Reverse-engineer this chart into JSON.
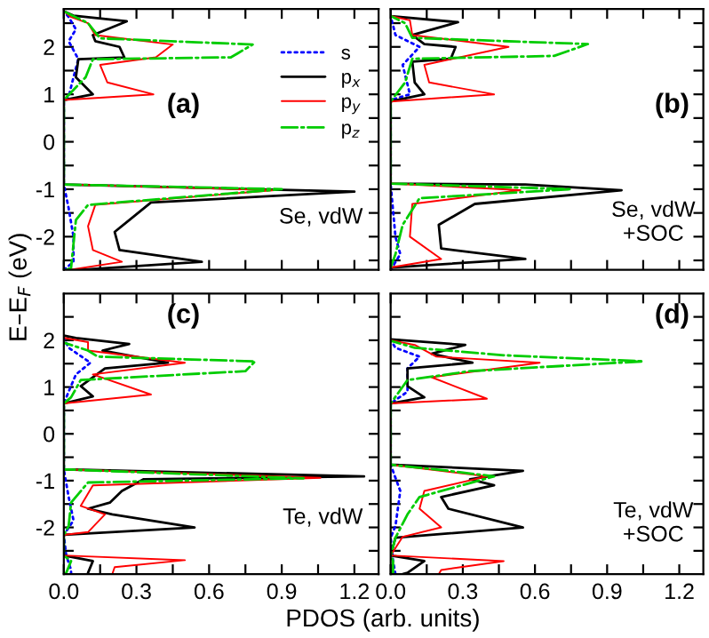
{
  "chart_data": [
    {
      "type": "line",
      "orientation": "horizontal",
      "ylabel": "E–E$_{F}$ (eV)",
      "annotations": [
        "(a)",
        "Se, vdW"
      ],
      "legend": "top right",
      "tick_labels": "y",
      "xlim": [
        0,
        1.3
      ],
      "xticks": [
        {
          "value": 0,
          "label": null
        },
        {
          "value": 0.15,
          "label": null
        },
        {
          "value": 0.3,
          "label": null
        },
        {
          "value": 0.45,
          "label": null
        },
        {
          "value": 0.6,
          "label": null
        },
        {
          "value": 0.75,
          "label": null
        },
        {
          "value": 0.9,
          "label": null
        },
        {
          "value": 1.05,
          "label": null
        },
        {
          "value": 1.2,
          "label": null
        }
      ],
      "ylim": [
        -2.7,
        2.8
      ],
      "yticks": [
        {
          "value": -2.5,
          "label": null
        },
        -2,
        {
          "value": -1.5,
          "label": null
        },
        -1,
        {
          "value": -0.5,
          "label": null
        },
        0,
        {
          "value": 0.5,
          "label": null
        },
        1,
        {
          "value": 1.5,
          "label": null
        },
        2,
        {
          "value": 2.5,
          "label": null
        }
      ],
      "series": [
        {
          "name": "s",
          "color": "#0000ff",
          "line_style": "dotted",
          "x": [
            -2.7,
            -2.53,
            -2.0,
            -1.4,
            -0.9,
            0.85,
            0.95,
            1.36,
            1.74,
            2.12,
            2.37,
            2.63,
            2.75
          ],
          "values": [
            0,
            0.04,
            0.04,
            0.02,
            0,
            0,
            0.02,
            0.04,
            0.06,
            0.02,
            0.05,
            0.02,
            0
          ]
        },
        {
          "name": "p$_{x}$",
          "color": "#000000",
          "line_style": "solid",
          "x": [
            -2.72,
            -2.53,
            -2.28,
            -1.9,
            -1.28,
            -1.05,
            -0.9,
            0.88,
            1.0,
            1.36,
            1.74,
            1.78,
            2.0,
            2.12,
            2.25,
            2.54,
            2.66,
            2.75
          ],
          "values": [
            0,
            0.57,
            0.23,
            0.21,
            0.36,
            1.2,
            0,
            0,
            0.12,
            0.05,
            0.06,
            0.25,
            0.23,
            0.13,
            0.12,
            0.26,
            0.04,
            0
          ]
        },
        {
          "name": "p$_{y}$",
          "color": "#ff0000",
          "line_style": "solid",
          "x": [
            -2.72,
            -2.53,
            -2.28,
            -1.78,
            -1.33,
            -1.02,
            -0.9,
            0.88,
            1.0,
            1.25,
            1.62,
            1.78,
            2.05,
            2.25,
            2.5,
            2.63,
            2.75
          ],
          "values": [
            0,
            0.24,
            0.12,
            0.1,
            0.13,
            0.87,
            0,
            0,
            0.37,
            0.18,
            0.15,
            0.38,
            0.45,
            0.13,
            0.1,
            0.03,
            0
          ]
        },
        {
          "name": "p$_{z}$",
          "color": "#00cc00",
          "line_style": "dashdot",
          "x": [
            -2.72,
            -2.66,
            -2.15,
            -1.65,
            -1.33,
            -1.0,
            -0.9,
            0.88,
            1.36,
            1.74,
            1.78,
            1.87,
            2.05,
            2.18,
            2.5,
            2.7,
            2.75
          ],
          "values": [
            0,
            0.03,
            0.04,
            0.05,
            0.1,
            0.9,
            0,
            0,
            0.09,
            0.12,
            0.69,
            0.72,
            0.78,
            0.15,
            0.1,
            0.02,
            0
          ]
        }
      ]
    },
    {
      "type": "line",
      "orientation": "horizontal",
      "annotations": [
        "(b)",
        "Se, vdW\n+SOC"
      ],
      "tick_labels": false,
      "xlim": [
        0,
        1.3
      ],
      "xticks": [
        {
          "value": 0,
          "label": null
        },
        {
          "value": 0.15,
          "label": null
        },
        {
          "value": 0.3,
          "label": null
        },
        {
          "value": 0.45,
          "label": null
        },
        {
          "value": 0.6,
          "label": null
        },
        {
          "value": 0.75,
          "label": null
        },
        {
          "value": 0.9,
          "label": null
        },
        {
          "value": 1.05,
          "label": null
        },
        {
          "value": 1.2,
          "label": null
        }
      ],
      "ylim": [
        -2.7,
        2.8
      ],
      "yticks": [
        {
          "value": -2.5,
          "label": null
        },
        {
          "value": -2,
          "label": null
        },
        {
          "value": -1.5,
          "label": null
        },
        {
          "value": -1,
          "label": null
        },
        {
          "value": -0.5,
          "label": null
        },
        {
          "value": 0,
          "label": null
        },
        {
          "value": 0.5,
          "label": null
        },
        {
          "value": 1,
          "label": null
        },
        {
          "value": 1.5,
          "label": null
        },
        {
          "value": 2,
          "label": null
        },
        {
          "value": 2.5,
          "label": null
        }
      ],
      "series": [
        {
          "color": "#0000ff",
          "line_style": "dotted",
          "x": [
            -2.7,
            -2.37,
            -2.0,
            -0.9,
            0.88,
            1.0,
            1.62,
            2.0,
            2.25,
            2.65
          ],
          "values": [
            0,
            0.04,
            0.02,
            0,
            0,
            0.08,
            0.05,
            0.12,
            0.02,
            0
          ]
        },
        {
          "color": "#000000",
          "line_style": "solid",
          "x": [
            -2.65,
            -2.47,
            -2.25,
            -1.75,
            -1.31,
            -1.02,
            -0.9,
            -0.88,
            0.85,
            1.0,
            1.25,
            1.69,
            1.75,
            2.0,
            2.06,
            2.25,
            2.52,
            2.65
          ],
          "values": [
            0,
            0.56,
            0.21,
            0.2,
            0.35,
            0.96,
            0.56,
            0,
            0,
            0.14,
            0.1,
            0.09,
            0.25,
            0.27,
            0.14,
            0.09,
            0.28,
            0
          ]
        },
        {
          "color": "#ff0000",
          "line_style": "solid",
          "x": [
            -2.65,
            -2.47,
            -2.0,
            -1.31,
            -1.02,
            -0.88,
            0.85,
            1.0,
            1.25,
            1.62,
            2.0,
            2.25,
            2.56,
            2.65
          ],
          "values": [
            0,
            0.21,
            0.08,
            0.09,
            0.54,
            0,
            0,
            0.43,
            0.16,
            0.14,
            0.49,
            0.09,
            0.08,
            0
          ]
        },
        {
          "color": "#00cc00",
          "line_style": "dashdot",
          "x": [
            -2.65,
            -2.37,
            -1.75,
            -1.19,
            -1.0,
            -0.88,
            0.85,
            1.25,
            1.75,
            1.81,
            2.06,
            2.19,
            2.5,
            2.65
          ],
          "values": [
            0,
            0.02,
            0.05,
            0.12,
            0.75,
            0,
            0,
            0.06,
            0.09,
            0.68,
            0.82,
            0.09,
            0.06,
            0
          ]
        }
      ]
    },
    {
      "type": "line",
      "orientation": "horizontal",
      "xlabel": "PDOS (arb. units)",
      "annotations": [
        "(c)",
        "Te, vdW"
      ],
      "xlim": [
        0,
        1.3
      ],
      "xticks": [
        {
          "value": 0,
          "label": "0.0"
        },
        {
          "value": 0.15,
          "label": null
        },
        {
          "value": 0.3,
          "label": "0.3"
        },
        {
          "value": 0.45,
          "label": null
        },
        {
          "value": 0.6,
          "label": "0.6"
        },
        {
          "value": 0.75,
          "label": null
        },
        {
          "value": 0.9,
          "label": "0.9"
        },
        {
          "value": 1.05,
          "label": null
        },
        {
          "value": 1.2,
          "label": "1.2"
        }
      ],
      "ylim": [
        -3,
        3
      ],
      "yticks": [
        {
          "value": -2.5,
          "label": null
        },
        -2,
        {
          "value": -1.5,
          "label": null
        },
        -1,
        {
          "value": -0.5,
          "label": null
        },
        0,
        {
          "value": 0.5,
          "label": null
        },
        1,
        {
          "value": 1.5,
          "label": null
        },
        2,
        {
          "value": 2.5,
          "label": null
        }
      ],
      "series": [
        {
          "color": "#0000ff",
          "line_style": "dotted",
          "x": [
            -3.0,
            -2.91,
            -2.6,
            -2.16,
            -1.85,
            -1.35,
            -0.76,
            0.65,
            0.9,
            1.27,
            1.52,
            1.84,
            2.05
          ],
          "values": [
            0.03,
            0.03,
            0.01,
            0,
            0.04,
            0.02,
            0,
            0,
            0.02,
            0.05,
            0.11,
            0.02,
            0
          ]
        },
        {
          "color": "#000000",
          "line_style": "solid",
          "x": [
            -3.0,
            -2.97,
            -2.72,
            -2.6,
            -2.16,
            -2.0,
            -1.72,
            -1.6,
            -1.47,
            -1.22,
            -0.97,
            -0.91,
            -0.76,
            0.65,
            0.8,
            1.02,
            1.4,
            1.52,
            1.78,
            1.92,
            2.05,
            2.1
          ],
          "values": [
            0.1,
            0.1,
            0.12,
            0,
            0,
            0.54,
            0.2,
            0.1,
            0.19,
            0.24,
            0.33,
            1.24,
            0,
            0,
            0.12,
            0.07,
            0.17,
            0.43,
            0.16,
            0.27,
            0.05,
            0
          ]
        },
        {
          "color": "#ff0000",
          "line_style": "solid",
          "x": [
            -3.0,
            -2.85,
            -2.7,
            -2.6,
            -2.16,
            -2.1,
            -1.72,
            -1.54,
            -1.1,
            -0.94,
            -0.76,
            0.65,
            0.84,
            1.27,
            1.52,
            1.78,
            1.96,
            2.05
          ],
          "values": [
            0.2,
            0.21,
            0.5,
            0,
            0,
            0.1,
            0.17,
            0.07,
            0.12,
            1.06,
            0,
            0,
            0.36,
            0.12,
            0.5,
            0.1,
            0.1,
            0
          ]
        },
        {
          "color": "#00cc00",
          "line_style": "dashdot",
          "x": [
            -3.0,
            -2.97,
            -2.72,
            -2.6,
            -2.16,
            -1.97,
            -1.47,
            -1.04,
            -0.95,
            -0.76,
            0.65,
            0.78,
            1.15,
            1.34,
            1.55,
            1.65,
            1.78,
            1.95
          ],
          "values": [
            0,
            0.01,
            0.03,
            0,
            0,
            0.02,
            0.03,
            0.1,
            0.99,
            0,
            0,
            0.03,
            0.07,
            0.75,
            0.79,
            0.14,
            0.1,
            0
          ]
        }
      ]
    },
    {
      "type": "line",
      "orientation": "horizontal",
      "annotations": [
        "(d)",
        "Te, vdW\n+SOC"
      ],
      "tick_labels": "x",
      "xlim": [
        0,
        1.3
      ],
      "xticks": [
        {
          "value": 0,
          "label": "0.0"
        },
        {
          "value": 0.15,
          "label": null
        },
        {
          "value": 0.3,
          "label": "0.3"
        },
        {
          "value": 0.45,
          "label": null
        },
        {
          "value": 0.6,
          "label": "0.6"
        },
        {
          "value": 0.75,
          "label": null
        },
        {
          "value": 0.9,
          "label": "0.9"
        },
        {
          "value": 1.05,
          "label": null
        },
        {
          "value": 1.2,
          "label": "1.2"
        }
      ],
      "ylim": [
        -3,
        3
      ],
      "yticks": [
        {
          "value": -2.5,
          "label": null
        },
        {
          "value": -2,
          "label": null
        },
        {
          "value": -1.5,
          "label": null
        },
        {
          "value": -1,
          "label": null
        },
        {
          "value": -0.5,
          "label": null
        },
        {
          "value": 0,
          "label": null
        },
        {
          "value": 0.5,
          "label": null
        },
        {
          "value": 1,
          "label": null
        },
        {
          "value": 1.5,
          "label": null
        },
        {
          "value": 2,
          "label": null
        },
        {
          "value": 2.5,
          "label": null
        }
      ],
      "series": [
        {
          "color": "#0000ff",
          "line_style": "dotted",
          "x": [
            -3.0,
            -2.72,
            -2.22,
            -1.97,
            -1.22,
            -0.66,
            0.65,
            0.9,
            1.4,
            1.65,
            1.84,
            2.0
          ],
          "values": [
            0.02,
            0.01,
            0,
            0.02,
            0.04,
            0,
            0,
            0.07,
            0.07,
            0.12,
            0.02,
            0
          ]
        },
        {
          "color": "#000000",
          "line_style": "solid",
          "x": [
            -3.0,
            -2.97,
            -2.72,
            -2.6,
            -2.22,
            -2.0,
            -1.6,
            -1.35,
            -1.1,
            -0.97,
            -0.79,
            -0.66,
            0.65,
            0.78,
            1.02,
            1.4,
            1.52,
            1.71,
            1.9,
            2.02
          ],
          "values": [
            0.05,
            0.07,
            0.14,
            0,
            0.02,
            0.55,
            0.24,
            0.21,
            0.43,
            0.33,
            0.55,
            0,
            0,
            0.14,
            0.07,
            0.07,
            0.34,
            0.17,
            0.31,
            0
          ]
        },
        {
          "color": "#ff0000",
          "line_style": "solid",
          "x": [
            -3.0,
            -2.91,
            -2.72,
            -2.6,
            -2.2,
            -2.0,
            -1.6,
            -1.22,
            -0.91,
            -0.66,
            0.65,
            0.75,
            1.21,
            1.52,
            1.65,
            1.9,
            2.0
          ],
          "values": [
            0.2,
            0.21,
            0.47,
            0,
            0.05,
            0.21,
            0.12,
            0.14,
            0.4,
            0,
            0,
            0.4,
            0.17,
            0.62,
            0.19,
            0.1,
            0
          ]
        },
        {
          "color": "#00cc00",
          "line_style": "dashdot",
          "x": [
            -3.0,
            -2.72,
            -2.6,
            -2.22,
            -1.72,
            -1.35,
            -0.91,
            -0.79,
            -0.66,
            0.65,
            1.15,
            1.34,
            1.55,
            1.68,
            1.84,
            1.99
          ],
          "values": [
            0.01,
            0.01,
            0,
            0.02,
            0.07,
            0.12,
            0.43,
            0.24,
            0,
            0,
            0.07,
            0.33,
            1.05,
            0.47,
            0.1,
            0
          ]
        }
      ]
    }
  ]
}
